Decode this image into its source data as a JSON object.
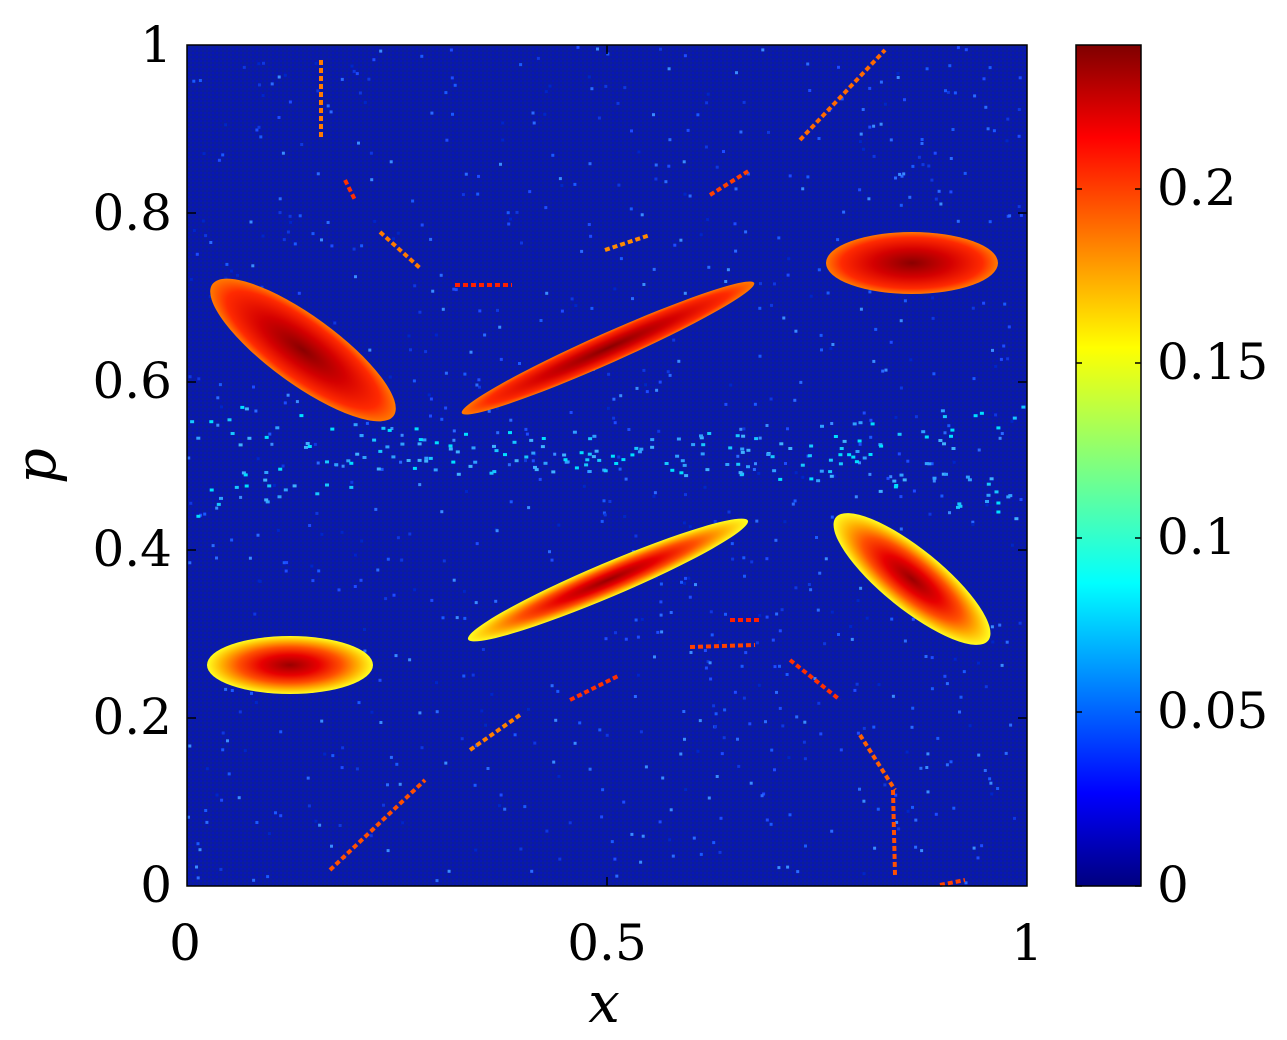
{
  "chart_data": {
    "type": "heatmap",
    "xlabel": "x",
    "ylabel": "p",
    "xlim": [
      0,
      1
    ],
    "ylim": [
      0,
      1
    ],
    "x_ticks": [
      "0",
      "0.5",
      "1"
    ],
    "y_ticks": [
      "0",
      "0.2",
      "0.4",
      "0.6",
      "0.8",
      "1"
    ],
    "colorbar": {
      "colormap": "jet",
      "range": [
        0,
        0.24
      ],
      "ticks": [
        "0",
        "0.05",
        "0.1",
        "0.15",
        "0.2"
      ]
    },
    "background_value": 0.015,
    "regions": [
      {
        "x": 0.12,
        "p": 0.63,
        "peak": 0.235,
        "shape": "slanted-ellipse"
      },
      {
        "x": 0.5,
        "p": 0.625,
        "peak": 0.21,
        "shape": "rising-band"
      },
      {
        "x": 0.88,
        "p": 0.735,
        "peak": 0.235,
        "shape": "ellipse"
      },
      {
        "x": 0.12,
        "p": 0.26,
        "peak": 0.235,
        "shape": "ellipse"
      },
      {
        "x": 0.5,
        "p": 0.355,
        "peak": 0.2,
        "shape": "rising-band"
      },
      {
        "x": 0.88,
        "p": 0.36,
        "peak": 0.235,
        "shape": "slanted-ellipse"
      }
    ]
  }
}
